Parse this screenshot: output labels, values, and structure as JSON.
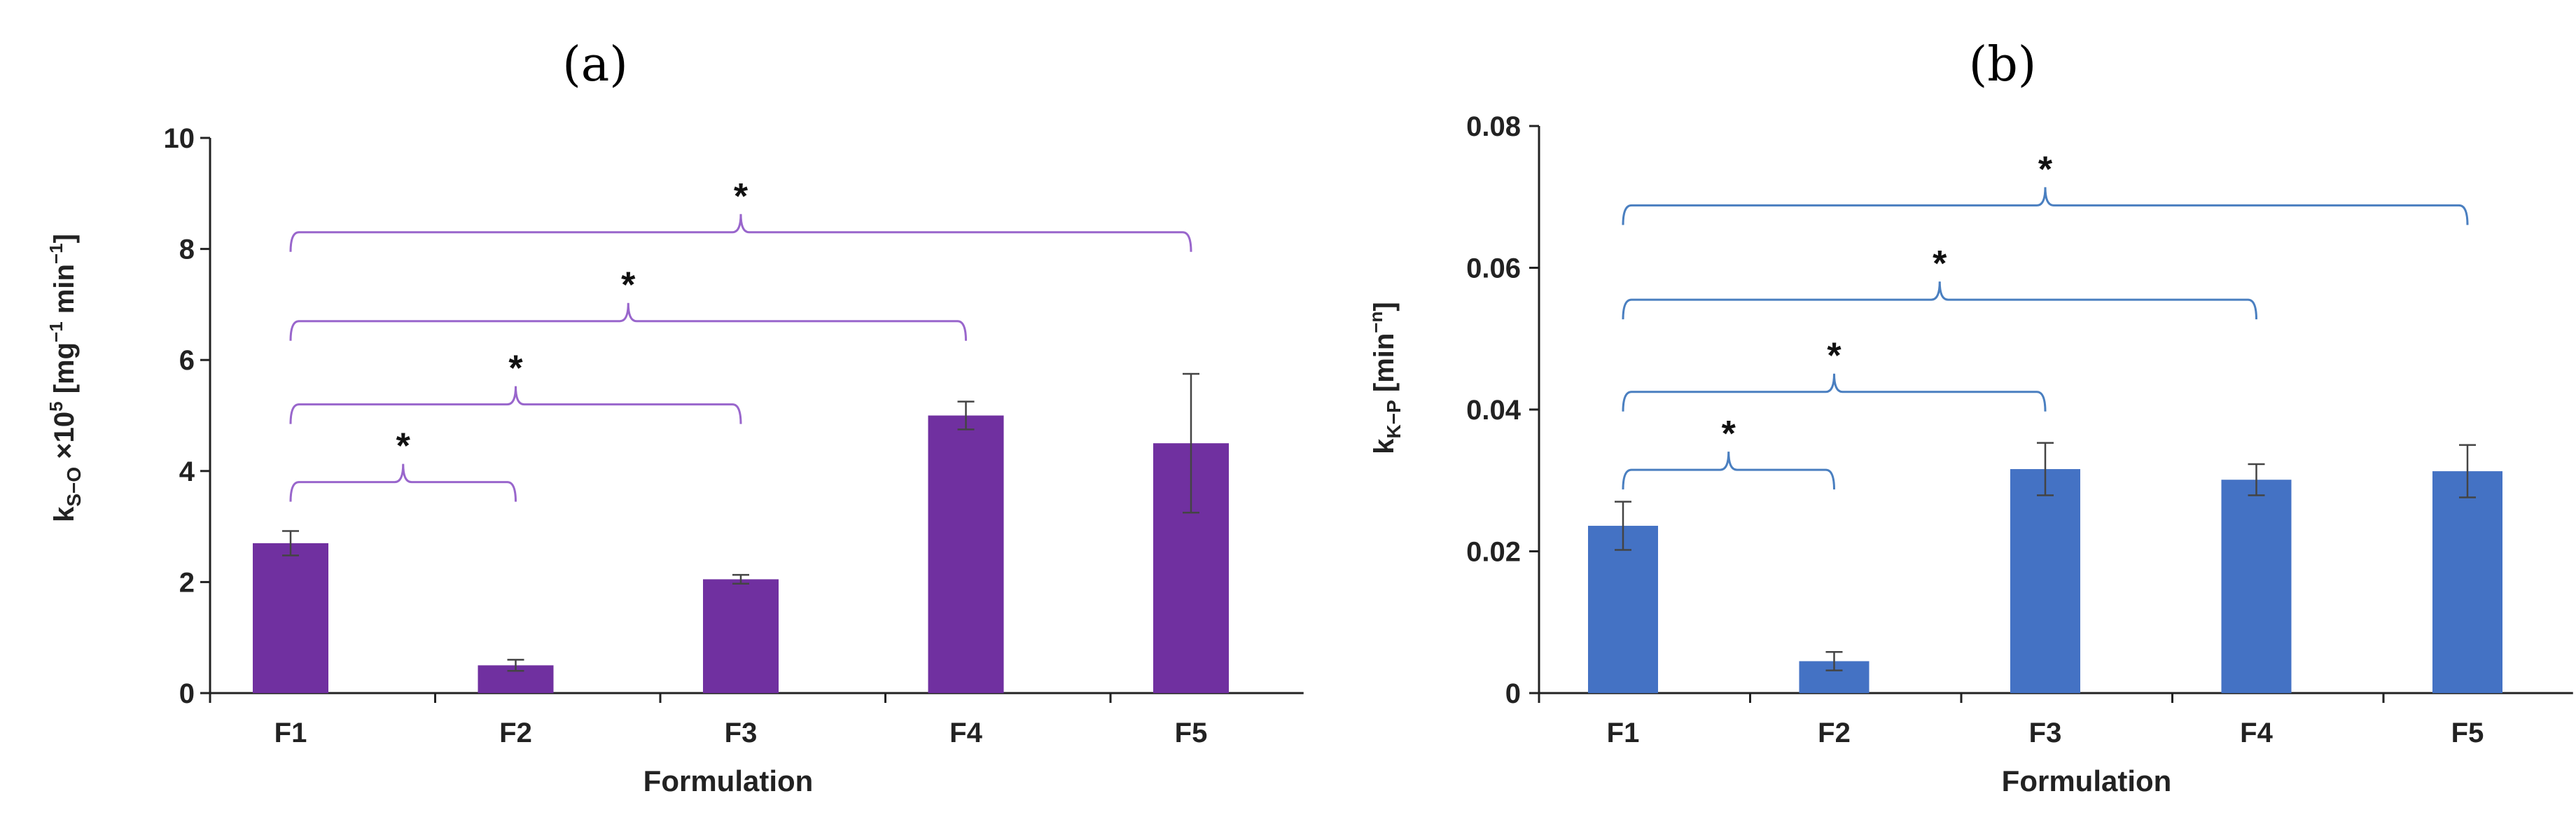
{
  "chart_data": [
    {
      "panel_label": "(a)",
      "type": "bar",
      "color": "#7030A0",
      "categories": [
        "F1",
        "F2",
        "F3",
        "F4",
        "F5"
      ],
      "values": [
        2.7,
        0.5,
        2.05,
        5.0,
        4.5
      ],
      "errors": [
        0.22,
        0.1,
        0.08,
        0.25,
        1.25
      ],
      "xlabel": "Formulation",
      "ylabel_main": "k",
      "ylabel_sub": "S−O",
      "ylabel_rest": " ×10",
      "ylabel_sup": "5",
      "ylabel_units": " [mg",
      "ylabel_units_sup": "−1",
      "ylabel_units_end": " min",
      "ylabel_units_end_sup": "−1",
      "ylabel_close": "]",
      "ylim": [
        0,
        10
      ],
      "yticks": [
        "0",
        "2",
        "4",
        "6",
        "8",
        "10"
      ],
      "ytick_values": [
        0,
        2,
        4,
        6,
        8,
        10
      ],
      "brackets": [
        {
          "from": "F1",
          "to": "F2",
          "level": 3.8,
          "label": "*"
        },
        {
          "from": "F1",
          "to": "F3",
          "level": 5.2,
          "label": "*"
        },
        {
          "from": "F1",
          "to": "F4",
          "level": 6.7,
          "label": "*"
        },
        {
          "from": "F1",
          "to": "F5",
          "level": 8.3,
          "label": "*"
        }
      ]
    },
    {
      "panel_label": "(b)",
      "type": "bar",
      "color": "#4472C4",
      "categories": [
        "F1",
        "F2",
        "F3",
        "F4",
        "F5"
      ],
      "values": [
        0.0236,
        0.0045,
        0.0316,
        0.0301,
        0.0313
      ],
      "errors": [
        0.0034,
        0.0013,
        0.0037,
        0.0022,
        0.0037
      ],
      "xlabel": "Formulation",
      "ylabel_main": "k",
      "ylabel_sub": "K−P",
      "ylabel_units": " [min",
      "ylabel_units_sup": "−n",
      "ylabel_close": "]",
      "ylim": [
        0,
        0.08
      ],
      "yticks": [
        "0",
        "0.02",
        "0.04",
        "0.06",
        "0.08"
      ],
      "ytick_values": [
        0,
        0.02,
        0.04,
        0.06,
        0.08
      ],
      "brackets": [
        {
          "from": "F1",
          "to": "F2",
          "level": 0.0315,
          "label": "*"
        },
        {
          "from": "F1",
          "to": "F3",
          "level": 0.0425,
          "label": "*"
        },
        {
          "from": "F1",
          "to": "F4",
          "level": 0.0555,
          "label": "*"
        },
        {
          "from": "F1",
          "to": "F5",
          "level": 0.0688,
          "label": "*"
        }
      ]
    }
  ]
}
